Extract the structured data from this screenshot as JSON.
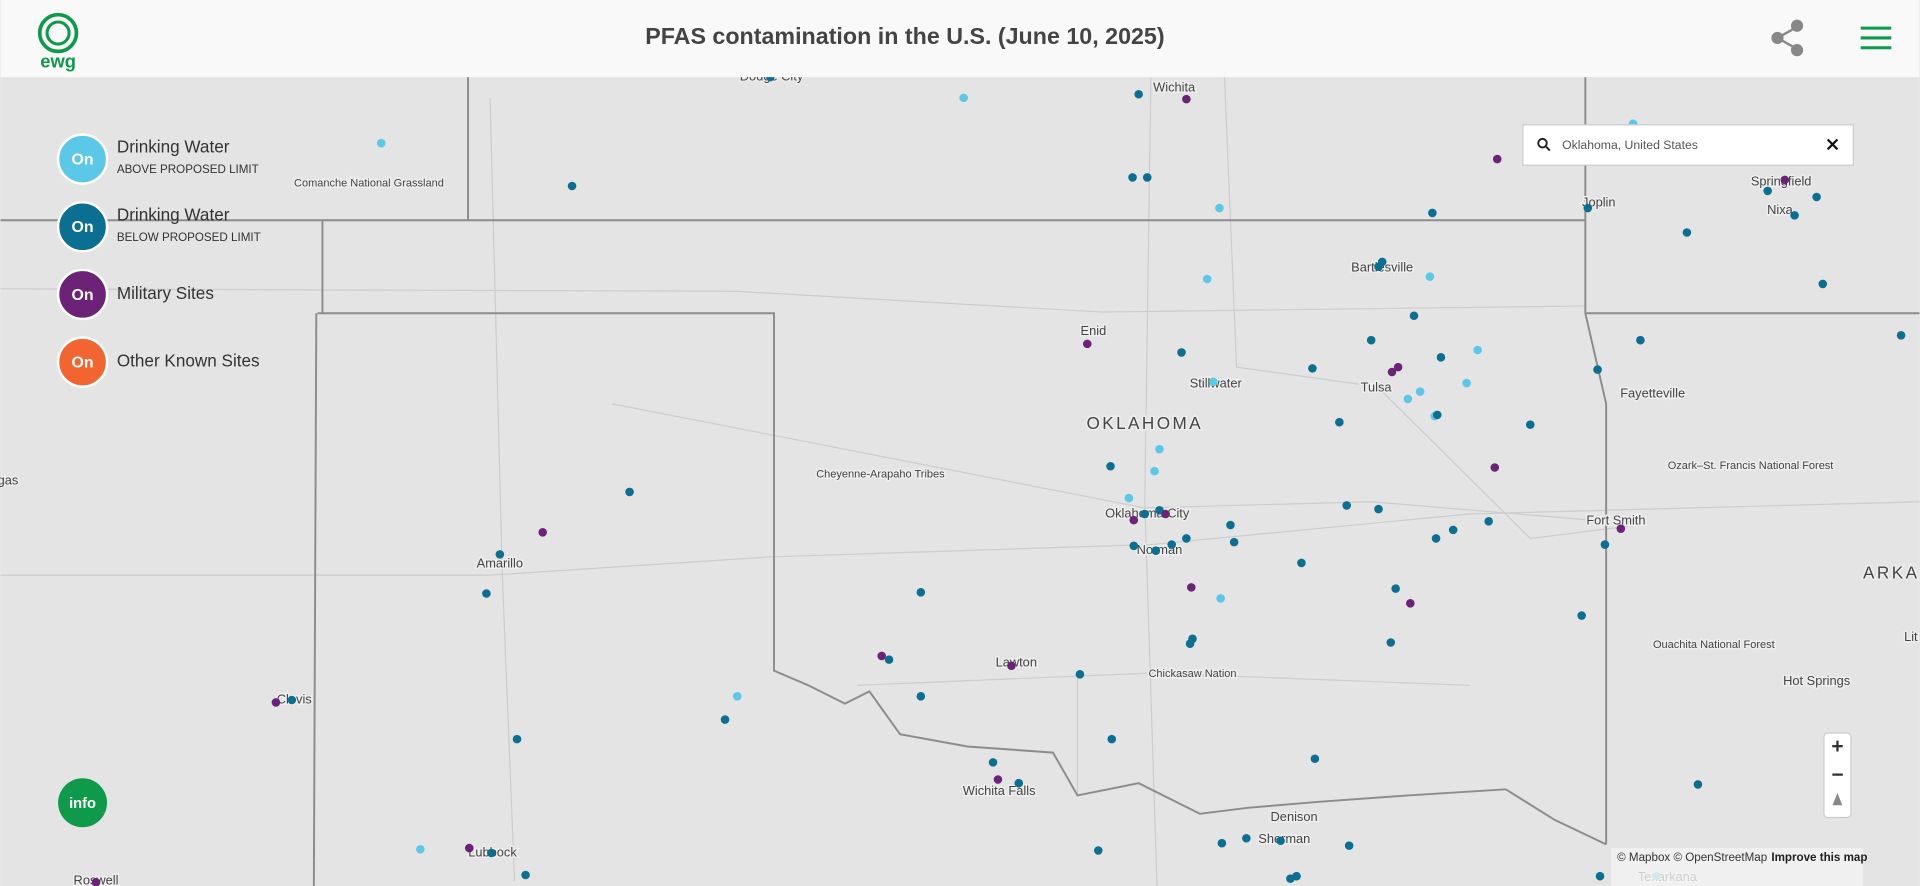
{
  "header": {
    "title": "PFAS contamination in the U.S. (June 10, 2025)",
    "logo": "ewg"
  },
  "legend": {
    "items": [
      {
        "state": "On",
        "label": "Drinking Water",
        "sublabel": "ABOVE PROPOSED LIMIT"
      },
      {
        "state": "On",
        "label": "Drinking Water",
        "sublabel": "BELOW PROPOSED LIMIT"
      },
      {
        "state": "On",
        "label": "Military Sites"
      },
      {
        "state": "On",
        "label": "Other Known Sites"
      }
    ]
  },
  "info_button": "info",
  "search": {
    "value": "Oklahoma, United States"
  },
  "zoom": {
    "in": "+",
    "out": "−"
  },
  "attribution": {
    "mapbox": "© Mapbox",
    "osm": "© OpenStreetMap",
    "improve": "Improve this map"
  },
  "map": {
    "labels": [
      "Dodge City",
      "Wichita",
      "Comanche National Grassland",
      "Joplin",
      "Springfield",
      "Nixa",
      "Bartlesville",
      "Enid",
      "Stillwater",
      "Tulsa",
      "OKLAHOMA",
      "Fayetteville",
      "Ozark–St. Francis National Forest",
      "Cheyenne-Arapaho Tribes",
      "Oklahoma City",
      "Norman",
      "Fort Smith",
      "Amarillo",
      "ARKA",
      "Lawton",
      "Chickasaw Nation",
      "Ouachita National Forest",
      "Hot Springs",
      "Clovis",
      "Wichita Falls",
      "Denison",
      "Sherman",
      "Lubbock",
      "Roswell",
      "Texarkana",
      "gas",
      "Lit"
    ]
  }
}
